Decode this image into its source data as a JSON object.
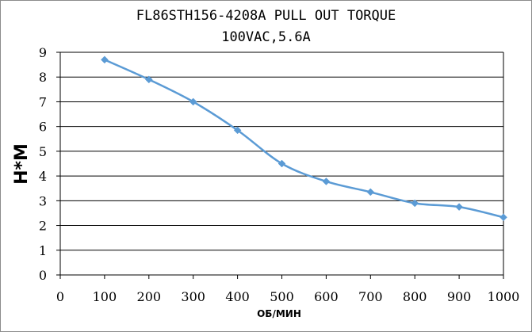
{
  "chart_data": {
    "type": "line",
    "title": "FL86STH156-4208A PULL OUT TORQUE",
    "subtitle": "100VAC,5.6A",
    "xlabel": "ОБ/МИН",
    "ylabel": "Н*М",
    "xlim": [
      0,
      1000
    ],
    "ylim": [
      0,
      9
    ],
    "x_ticks": [
      "0",
      "100",
      "200",
      "300",
      "400",
      "500",
      "600",
      "700",
      "800",
      "900",
      "1000"
    ],
    "y_ticks": [
      "0",
      "1",
      "2",
      "3",
      "4",
      "5",
      "6",
      "7",
      "8",
      "9"
    ],
    "grid": "horizontal",
    "line_color": "#5b9bd5",
    "series": [
      {
        "x": [
          100,
          200,
          300,
          400,
          500,
          600,
          700,
          800,
          900,
          1000
        ],
        "values": [
          8.7,
          7.9,
          7.0,
          5.85,
          4.5,
          3.78,
          3.35,
          2.9,
          2.75,
          2.33
        ]
      }
    ]
  }
}
